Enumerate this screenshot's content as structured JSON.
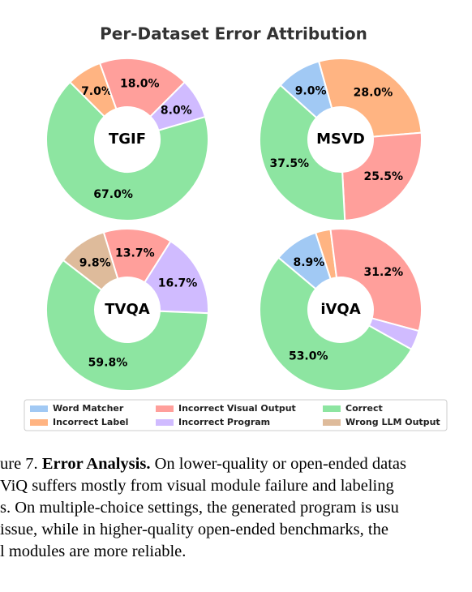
{
  "title": "Per-Dataset Error Attribution",
  "slices": [
    {
      "name": "Word Matcher",
      "color": "#a1c9f4"
    },
    {
      "name": "Incorrect Label",
      "color": "#ffb482"
    },
    {
      "name": "Incorrect Visual Output",
      "color": "#ff9f9b"
    },
    {
      "name": "Incorrect Program",
      "color": "#d0bbff"
    },
    {
      "name": "Correct",
      "color": "#8de5a1"
    },
    {
      "name": "Wrong LLM Output",
      "color": "#debb9b"
    }
  ],
  "chart_data": [
    {
      "type": "pie",
      "center_label": "TGIF",
      "values": [
        0,
        7,
        18,
        8,
        67,
        0
      ],
      "value_labels": [
        null,
        "7.0%",
        "18.0%",
        "8.0%",
        "67.0%",
        null
      ]
    },
    {
      "type": "pie",
      "center_label": "MSVD",
      "values": [
        9,
        28,
        25.5,
        0,
        37.5,
        0
      ],
      "value_labels": [
        "9.0%",
        "28.0%",
        "25.5%",
        null,
        "37.5%",
        null
      ]
    },
    {
      "type": "pie",
      "center_label": "TVQA",
      "values": [
        0,
        0,
        13.7,
        16.7,
        59.8,
        9.8
      ],
      "value_labels": [
        null,
        null,
        "13.7%",
        "16.7%",
        "59.8%",
        "9.8%"
      ]
    },
    {
      "type": "pie",
      "center_label": "iVQA",
      "values": [
        8.9,
        3,
        31.2,
        3.9,
        53,
        0
      ],
      "value_labels": [
        "8.9%",
        null,
        "31.2%",
        null,
        "53.0%",
        null
      ]
    }
  ],
  "caption": {
    "lines": [
      [
        "ure 7. ",
        "Error Analysis.",
        " On lower-quality or open-ended datas"
      ],
      [
        "ViQ suffers mostly from visual module failure and labeling"
      ],
      [
        "s. On multiple-choice settings, the generated program is usu"
      ],
      [
        "issue, while in higher-quality open-ended benchmarks, the"
      ],
      [
        "l modules are more reliable."
      ]
    ]
  }
}
